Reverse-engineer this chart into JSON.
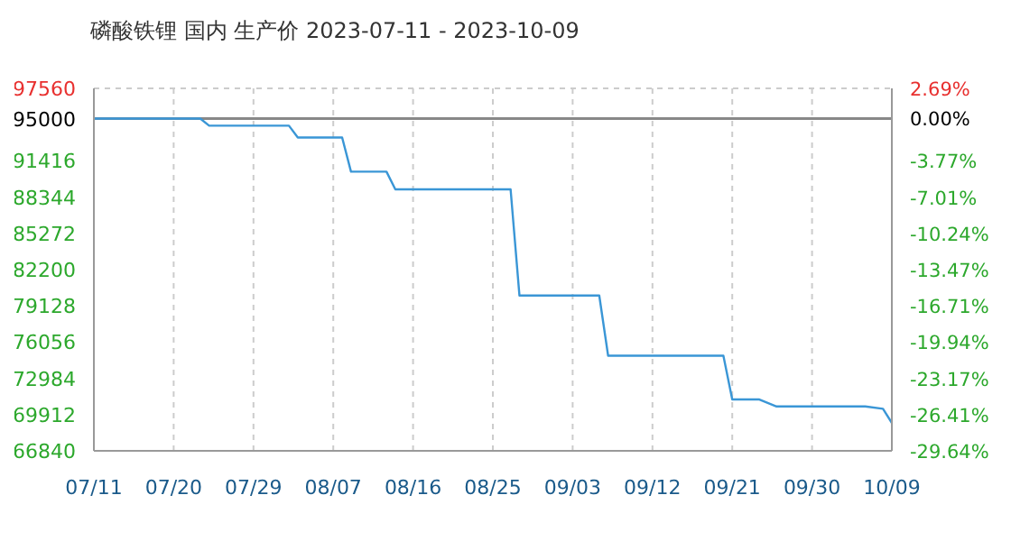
{
  "chart_data": {
    "type": "line",
    "title": "磷酸铁锂 国内 生产价 2023-07-11 - 2023-10-09",
    "x": [
      "2023-07-11",
      "2023-07-23",
      "2023-07-24",
      "2023-08-02",
      "2023-08-03",
      "2023-08-08",
      "2023-08-09",
      "2023-08-13",
      "2023-08-14",
      "2023-08-27",
      "2023-08-28",
      "2023-09-06",
      "2023-09-07",
      "2023-09-20",
      "2023-09-21",
      "2023-09-24",
      "2023-09-26",
      "2023-10-06",
      "2023-10-08",
      "2023-10-09"
    ],
    "series": [
      {
        "color": "#3a96d6",
        "values": [
          95000,
          95000,
          94400,
          94400,
          93400,
          93400,
          90500,
          90500,
          89000,
          89000,
          80000,
          80000,
          74900,
          74900,
          71200,
          71200,
          70600,
          70600,
          70400,
          69200
        ]
      }
    ],
    "xlim": [
      "2023-07-11",
      "2023-10-09"
    ],
    "xticks": [
      {
        "value": "2023-07-11",
        "label": "07/11"
      },
      {
        "value": "2023-07-20",
        "label": "07/20"
      },
      {
        "value": "2023-07-29",
        "label": "07/29"
      },
      {
        "value": "2023-08-07",
        "label": "08/07"
      },
      {
        "value": "2023-08-16",
        "label": "08/16"
      },
      {
        "value": "2023-08-25",
        "label": "08/25"
      },
      {
        "value": "2023-09-03",
        "label": "09/03"
      },
      {
        "value": "2023-09-12",
        "label": "09/12"
      },
      {
        "value": "2023-09-21",
        "label": "09/21"
      },
      {
        "value": "2023-09-30",
        "label": "09/30"
      },
      {
        "value": "2023-10-09",
        "label": "10/09"
      }
    ],
    "ylim": [
      66840,
      97560
    ],
    "yticks": [
      66840,
      69912,
      72984,
      76056,
      79128,
      82200,
      85272,
      88344,
      91416,
      95000,
      97560
    ],
    "y2lim": [
      -29.64,
      2.69
    ],
    "y2ticks": [
      {
        "value": -29.64,
        "label": "-29.64%"
      },
      {
        "value": -26.41,
        "label": "-26.41%"
      },
      {
        "value": -23.17,
        "label": "-23.17%"
      },
      {
        "value": -19.94,
        "label": "-19.94%"
      },
      {
        "value": -16.71,
        "label": "-16.71%"
      },
      {
        "value": -13.47,
        "label": "-13.47%"
      },
      {
        "value": -10.24,
        "label": "-10.24%"
      },
      {
        "value": -7.01,
        "label": "-7.01%"
      },
      {
        "value": -3.77,
        "label": "-3.77%"
      },
      {
        "value": 0,
        "label": "0.00%"
      },
      {
        "value": 2.69,
        "label": "2.69%"
      }
    ],
    "ref_lines": [
      {
        "axis": "y",
        "value": 95000,
        "color": "#888888",
        "line_style": "solid"
      }
    ],
    "grid": true,
    "marker": "none",
    "line_style": "solid"
  }
}
